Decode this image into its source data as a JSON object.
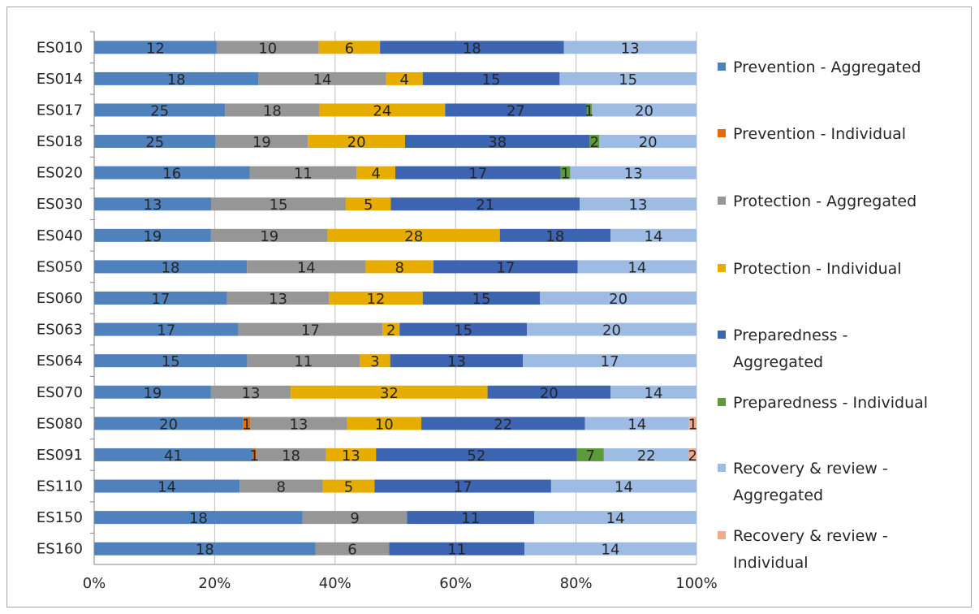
{
  "chart_data": {
    "type": "bar",
    "orientation": "horizontal",
    "stacking": "percent",
    "title": "",
    "xlabel": "",
    "ylabel": "",
    "xlim": [
      0,
      1
    ],
    "grid": true,
    "legend_position": "right",
    "x_ticks": [
      "0%",
      "20%",
      "40%",
      "60%",
      "80%",
      "100%"
    ],
    "categories": [
      "ES010",
      "ES014",
      "ES017",
      "ES018",
      "ES020",
      "ES030",
      "ES040",
      "ES050",
      "ES060",
      "ES063",
      "ES064",
      "ES070",
      "ES080",
      "ES091",
      "ES110",
      "ES150",
      "ES160"
    ],
    "series": [
      {
        "name": "Prevention - Aggregated",
        "legend_lines": [
          "Prevention - Aggregated"
        ],
        "color": "#4f81bd",
        "values": [
          12,
          18,
          25,
          25,
          16,
          13,
          19,
          18,
          17,
          17,
          15,
          19,
          20,
          41,
          14,
          18,
          18
        ]
      },
      {
        "name": "Prevention - Individual",
        "legend_lines": [
          "Prevention - Individual"
        ],
        "color": "#e36c0a",
        "values": [
          0,
          0,
          0,
          0,
          0,
          0,
          0,
          0,
          0,
          0,
          0,
          0,
          1,
          1,
          0,
          0,
          0
        ]
      },
      {
        "name": "Protection - Aggregated",
        "legend_lines": [
          "Protection - Aggregated"
        ],
        "color": "#969696",
        "values": [
          10,
          14,
          18,
          19,
          11,
          15,
          19,
          14,
          13,
          17,
          11,
          13,
          13,
          18,
          8,
          9,
          6
        ]
      },
      {
        "name": "Protection - Individual",
        "legend_lines": [
          "Protection - Individual"
        ],
        "color": "#e6ac00",
        "values": [
          6,
          4,
          24,
          20,
          4,
          5,
          28,
          8,
          12,
          2,
          3,
          32,
          10,
          13,
          5,
          0,
          0
        ]
      },
      {
        "name": "Preparedness - Aggregated",
        "legend_lines": [
          "Preparedness -",
          "Aggregated"
        ],
        "color": "#3c64b1",
        "values": [
          18,
          15,
          27,
          38,
          17,
          21,
          18,
          17,
          15,
          15,
          13,
          20,
          22,
          52,
          17,
          11,
          11
        ]
      },
      {
        "name": "Preparedness - Individual",
        "legend_lines": [
          "Preparedness - Individual"
        ],
        "color": "#5d9b3a",
        "values": [
          0,
          0,
          1,
          2,
          1,
          0,
          0,
          0,
          0,
          0,
          0,
          0,
          0,
          7,
          0,
          0,
          0
        ]
      },
      {
        "name": "Recovery & review - Aggregated",
        "legend_lines": [
          "Recovery & review -",
          "Aggregated"
        ],
        "color": "#9dbbe3",
        "values": [
          13,
          15,
          20,
          20,
          13,
          13,
          14,
          14,
          20,
          20,
          17,
          14,
          14,
          22,
          14,
          14,
          14
        ]
      },
      {
        "name": "Recovery & review - Individual",
        "legend_lines": [
          "Recovery & review -",
          "Individual"
        ],
        "color": "#f4a98c",
        "values": [
          0,
          0,
          0,
          0,
          0,
          0,
          0,
          0,
          0,
          0,
          0,
          0,
          1,
          2,
          0,
          0,
          0
        ]
      }
    ]
  }
}
